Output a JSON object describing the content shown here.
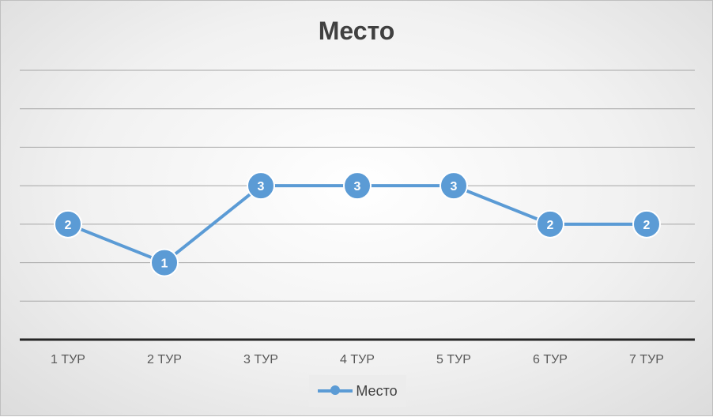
{
  "chart_data": {
    "type": "line",
    "title": "Место",
    "categories": [
      "1 ТУР",
      "2 ТУР",
      "3 ТУР",
      "4 ТУР",
      "5 ТУР",
      "6 ТУР",
      "7 ТУР"
    ],
    "series": [
      {
        "name": "Место",
        "values": [
          2,
          1,
          3,
          3,
          3,
          2,
          2
        ],
        "color": "#5b9bd5"
      }
    ],
    "ylim": [
      -1,
      6
    ],
    "y_gridlines": [
      0,
      1,
      2,
      3,
      4,
      5,
      6
    ],
    "data_labels": true,
    "legend_position": "bottom",
    "grid": true
  }
}
